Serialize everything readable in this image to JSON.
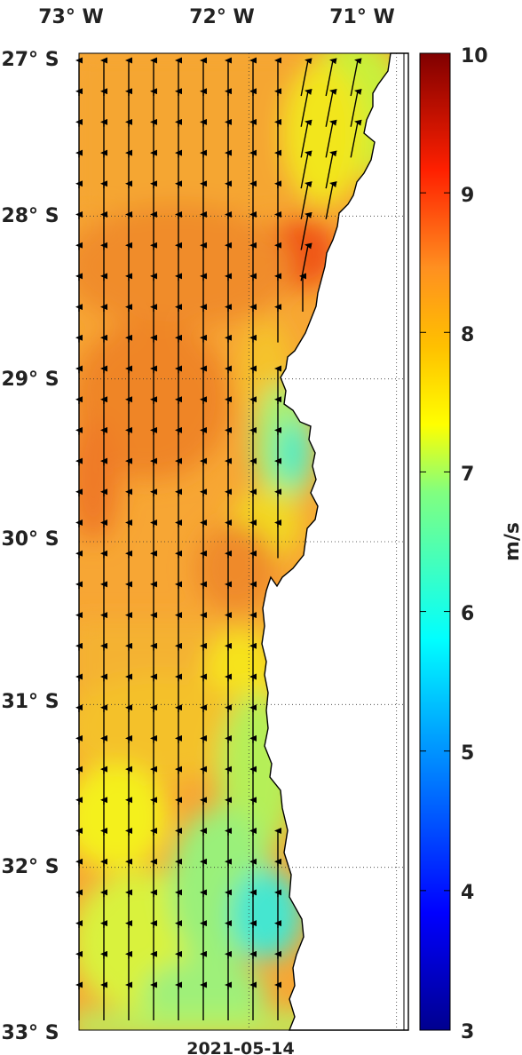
{
  "map": {
    "date_label": "2021-05-14",
    "lon_labels": [
      "73° W",
      "72° W",
      "71° W"
    ],
    "lat_labels": [
      "27° S",
      "28° S",
      "29° S",
      "30° S",
      "31° S",
      "32° S",
      "33° S"
    ],
    "extent": {
      "lon_min": -73.15,
      "lon_max": -70.95,
      "lat_min": -33.0,
      "lat_max": -27.0
    },
    "land_color": "#ffffff",
    "grid": "dotted",
    "field": "wind speed with direction arrows (arrows pointing north)"
  },
  "colorbar": {
    "unit_label": "m/s",
    "range": [
      3,
      10
    ],
    "tick_labels": [
      "3",
      "4",
      "5",
      "6",
      "7",
      "8",
      "9",
      "10"
    ],
    "colormap": "jet"
  }
}
